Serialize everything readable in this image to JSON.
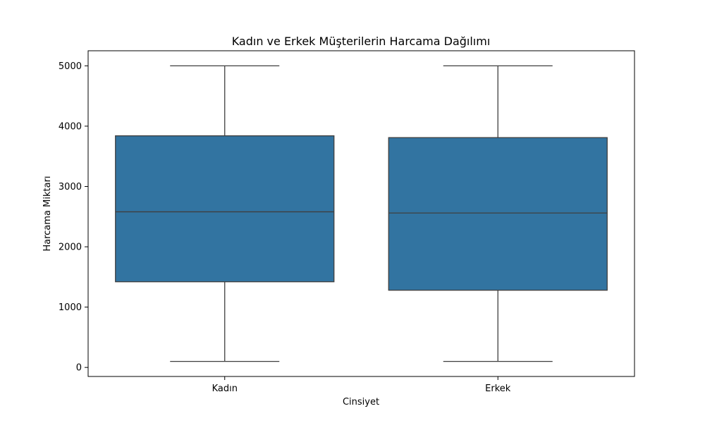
{
  "chart_data": {
    "type": "box",
    "title": "Kadın ve Erkek Müşterilerin Harcama Dağılımı",
    "xlabel": "Cinsiyet",
    "ylabel": "Harcama Miktarı",
    "ylim": [
      -150,
      5250
    ],
    "yticks": [
      0,
      1000,
      2000,
      3000,
      4000,
      5000
    ],
    "grid": false,
    "legend": "none",
    "box_color": "#3274a1",
    "line_color": "#3f3f3f",
    "categories": [
      "Kadın",
      "Erkek"
    ],
    "boxes": [
      {
        "label": "Kadın",
        "min": 100,
        "q1": 1420,
        "median": 2580,
        "q3": 3840,
        "max": 5000
      },
      {
        "label": "Erkek",
        "min": 100,
        "q1": 1280,
        "median": 2560,
        "q3": 3810,
        "max": 5000
      }
    ]
  }
}
